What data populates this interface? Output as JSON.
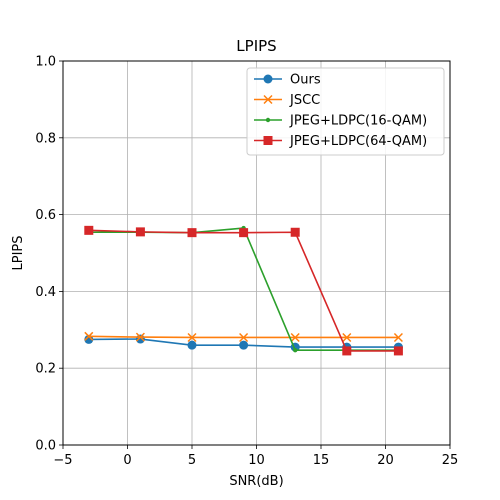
{
  "chart_data": {
    "type": "line",
    "title": "LPIPS",
    "xlabel": "SNR(dB)",
    "ylabel": "LPIPS",
    "xlim": [
      -5,
      25
    ],
    "ylim": [
      0.0,
      1.0
    ],
    "xticks": [
      -5,
      0,
      5,
      10,
      15,
      20,
      25
    ],
    "yticks": [
      0.0,
      0.2,
      0.4,
      0.6,
      0.8,
      1.0
    ],
    "xtick_labels": [
      "−5",
      "0",
      "5",
      "10",
      "15",
      "20",
      "25"
    ],
    "ytick_labels": [
      "0.0",
      "0.2",
      "0.4",
      "0.6",
      "0.8",
      "1.0"
    ],
    "grid": true,
    "legend_position": "top-right",
    "x": [
      -3,
      1,
      5,
      9,
      13,
      17,
      21
    ],
    "series": [
      {
        "name": "Ours",
        "color": "#1f77b4",
        "marker": "circle",
        "values": [
          0.275,
          0.276,
          0.26,
          0.26,
          0.255,
          0.255,
          0.255
        ]
      },
      {
        "name": "JSCC",
        "color": "#ff7f0e",
        "marker": "x",
        "values": [
          0.283,
          0.281,
          0.28,
          0.28,
          0.28,
          0.28,
          0.28
        ]
      },
      {
        "name": "JPEG+LDPC(16-QAM)",
        "color": "#2ca02c",
        "marker": "dot",
        "values": [
          0.554,
          0.554,
          0.553,
          0.565,
          0.247,
          0.247,
          0.247
        ]
      },
      {
        "name": "JPEG+LDPC(64-QAM)",
        "color": "#d62728",
        "marker": "square",
        "values": [
          0.559,
          0.555,
          0.553,
          0.553,
          0.554,
          0.245,
          0.245
        ]
      }
    ]
  }
}
